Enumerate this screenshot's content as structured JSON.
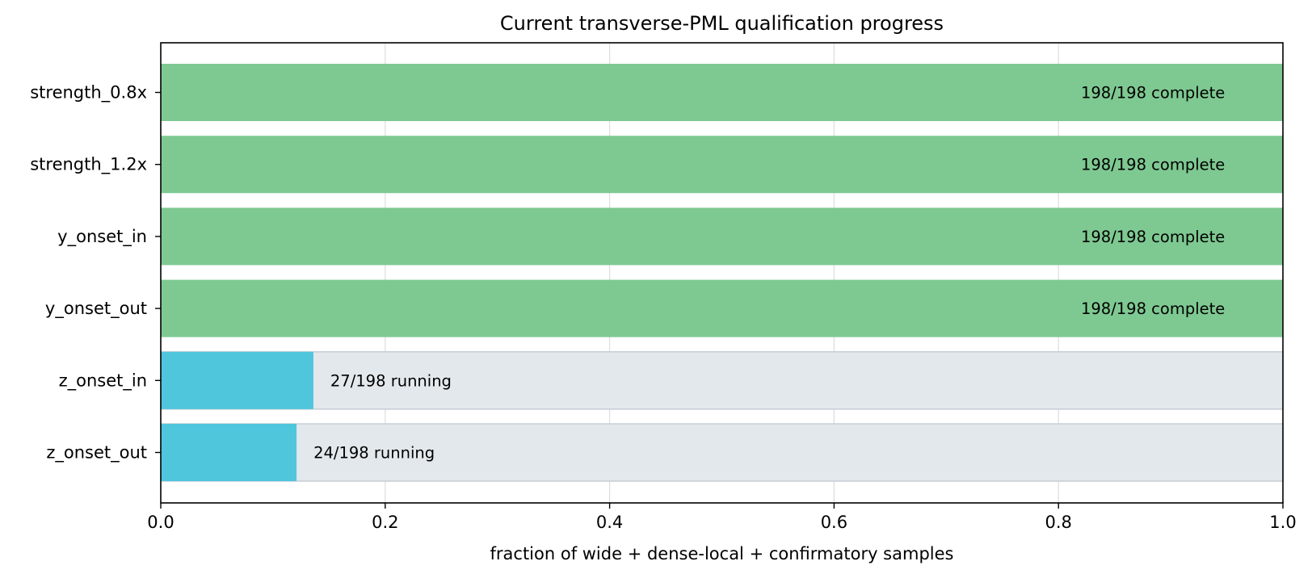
{
  "chart_data": {
    "type": "bar",
    "orientation": "horizontal",
    "title": "Current transverse-PML qualification progress",
    "xlabel": "fraction of wide + dense-local + confirmatory samples",
    "ylabel": "",
    "xlim": [
      0.0,
      1.0
    ],
    "xticks": [
      "0.0",
      "0.2",
      "0.4",
      "0.6",
      "0.8",
      "1.0"
    ],
    "grid": "vertical",
    "total": 198,
    "categories": [
      "strength_0.8x",
      "strength_1.2x",
      "y_onset_in",
      "y_onset_out",
      "z_onset_in",
      "z_onset_out"
    ],
    "values": [
      1.0,
      1.0,
      1.0,
      1.0,
      0.136,
      0.121
    ],
    "labels": [
      "198/198  complete",
      "198/198  complete",
      "198/198  complete",
      "198/198  complete",
      "27/198  running",
      "24/198  running"
    ],
    "status": [
      "complete",
      "complete",
      "complete",
      "complete",
      "running",
      "running"
    ],
    "colors": {
      "complete": "#7ec992",
      "running": "#4fc6dc",
      "background": "#e3e8ec",
      "background_edge": "#c5cdd6",
      "grid": "#dddddd"
    }
  }
}
